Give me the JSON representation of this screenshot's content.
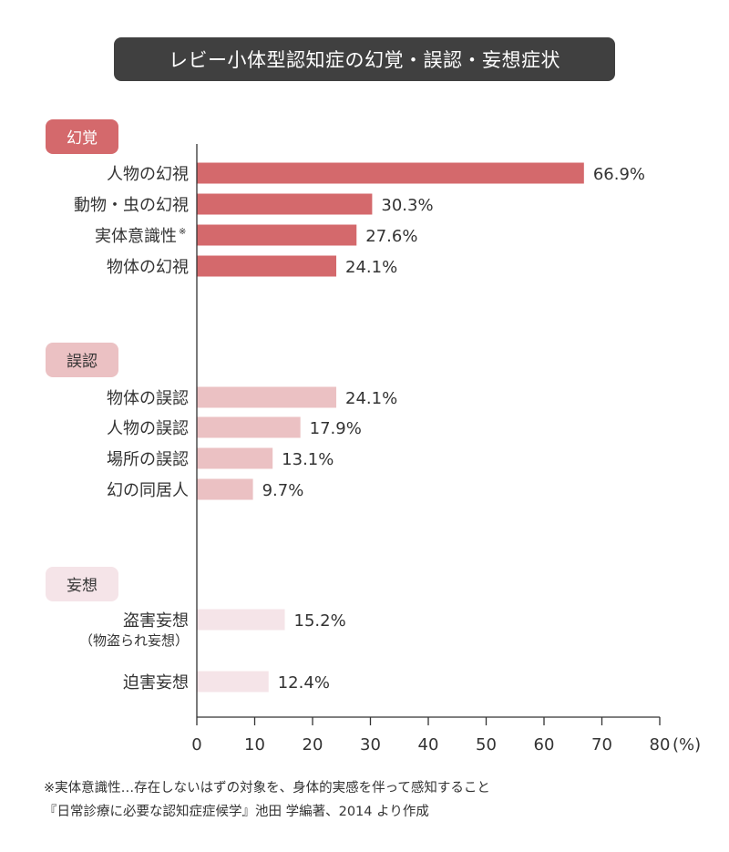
{
  "title": "レビー小体型認知症の幻覚・誤認・妄想症状",
  "chart_data": {
    "type": "bar",
    "orientation": "horizontal",
    "unit": "(%)",
    "xlim": [
      0,
      80
    ],
    "ticks": [
      0,
      10,
      20,
      30,
      40,
      50,
      60,
      70,
      80
    ],
    "groups": [
      {
        "name": "幻覚",
        "color": "#d4696c",
        "badge_color": "#d4696c",
        "badge_text_color": "#ffffff",
        "items": [
          {
            "label": "人物の幻視",
            "value": 66.9,
            "value_label": "66.9%"
          },
          {
            "label": "動物・虫の幻視",
            "value": 30.3,
            "value_label": "30.3%"
          },
          {
            "label": "実体意識性",
            "marker": "※",
            "value": 27.6,
            "value_label": "27.6%"
          },
          {
            "label": "物体の幻視",
            "value": 24.1,
            "value_label": "24.1%"
          }
        ]
      },
      {
        "name": "誤認",
        "color": "#ebc1c3",
        "badge_color": "#ebc1c3",
        "badge_text_color": "#333333",
        "items": [
          {
            "label": "物体の誤認",
            "value": 24.1,
            "value_label": "24.1%"
          },
          {
            "label": "人物の誤認",
            "value": 17.9,
            "value_label": "17.9%"
          },
          {
            "label": "場所の誤認",
            "value": 13.1,
            "value_label": "13.1%"
          },
          {
            "label": "幻の同居人",
            "value": 9.7,
            "value_label": "9.7%"
          }
        ]
      },
      {
        "name": "妄想",
        "color": "#f5e4e8",
        "badge_color": "#f5e4e8",
        "badge_text_color": "#333333",
        "items": [
          {
            "label": "盗害妄想",
            "sublabel": "（物盗られ妄想）",
            "value": 15.2,
            "value_label": "15.2%"
          },
          {
            "label": "迫害妄想",
            "value": 12.4,
            "value_label": "12.4%"
          }
        ]
      }
    ]
  },
  "footnotes": [
    "※実体意識性…存在しないはずの対象を、身体的実感を伴って感知すること",
    "『日常診療に必要な認知症症候学』池田 学編著、2014 より作成"
  ]
}
